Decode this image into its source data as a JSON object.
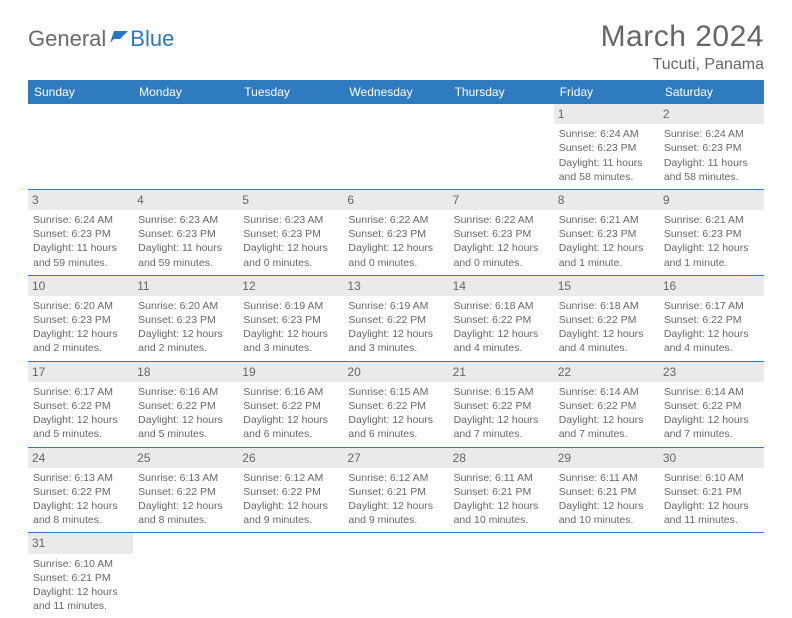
{
  "logo": {
    "text1": "General",
    "text2": "Blue"
  },
  "title": "March 2024",
  "location": "Tucuti, Panama",
  "day_headers": [
    "Sunday",
    "Monday",
    "Tuesday",
    "Wednesday",
    "Thursday",
    "Friday",
    "Saturday"
  ],
  "colors": {
    "header_bg": "#2f7bbf",
    "header_text": "#ffffff",
    "daynum_bg": "#eaeaea",
    "text": "#666666",
    "row_divider": "#2f7bbf",
    "logo_blue": "#2978c0"
  },
  "weeks": [
    [
      {
        "day": "",
        "sunrise": "",
        "sunset": "",
        "daylight": ""
      },
      {
        "day": "",
        "sunrise": "",
        "sunset": "",
        "daylight": ""
      },
      {
        "day": "",
        "sunrise": "",
        "sunset": "",
        "daylight": ""
      },
      {
        "day": "",
        "sunrise": "",
        "sunset": "",
        "daylight": ""
      },
      {
        "day": "",
        "sunrise": "",
        "sunset": "",
        "daylight": ""
      },
      {
        "day": "1",
        "sunrise": "Sunrise: 6:24 AM",
        "sunset": "Sunset: 6:23 PM",
        "daylight": "Daylight: 11 hours and 58 minutes."
      },
      {
        "day": "2",
        "sunrise": "Sunrise: 6:24 AM",
        "sunset": "Sunset: 6:23 PM",
        "daylight": "Daylight: 11 hours and 58 minutes."
      }
    ],
    [
      {
        "day": "3",
        "sunrise": "Sunrise: 6:24 AM",
        "sunset": "Sunset: 6:23 PM",
        "daylight": "Daylight: 11 hours and 59 minutes."
      },
      {
        "day": "4",
        "sunrise": "Sunrise: 6:23 AM",
        "sunset": "Sunset: 6:23 PM",
        "daylight": "Daylight: 11 hours and 59 minutes."
      },
      {
        "day": "5",
        "sunrise": "Sunrise: 6:23 AM",
        "sunset": "Sunset: 6:23 PM",
        "daylight": "Daylight: 12 hours and 0 minutes."
      },
      {
        "day": "6",
        "sunrise": "Sunrise: 6:22 AM",
        "sunset": "Sunset: 6:23 PM",
        "daylight": "Daylight: 12 hours and 0 minutes."
      },
      {
        "day": "7",
        "sunrise": "Sunrise: 6:22 AM",
        "sunset": "Sunset: 6:23 PM",
        "daylight": "Daylight: 12 hours and 0 minutes."
      },
      {
        "day": "8",
        "sunrise": "Sunrise: 6:21 AM",
        "sunset": "Sunset: 6:23 PM",
        "daylight": "Daylight: 12 hours and 1 minute."
      },
      {
        "day": "9",
        "sunrise": "Sunrise: 6:21 AM",
        "sunset": "Sunset: 6:23 PM",
        "daylight": "Daylight: 12 hours and 1 minute."
      }
    ],
    [
      {
        "day": "10",
        "sunrise": "Sunrise: 6:20 AM",
        "sunset": "Sunset: 6:23 PM",
        "daylight": "Daylight: 12 hours and 2 minutes."
      },
      {
        "day": "11",
        "sunrise": "Sunrise: 6:20 AM",
        "sunset": "Sunset: 6:23 PM",
        "daylight": "Daylight: 12 hours and 2 minutes."
      },
      {
        "day": "12",
        "sunrise": "Sunrise: 6:19 AM",
        "sunset": "Sunset: 6:23 PM",
        "daylight": "Daylight: 12 hours and 3 minutes."
      },
      {
        "day": "13",
        "sunrise": "Sunrise: 6:19 AM",
        "sunset": "Sunset: 6:22 PM",
        "daylight": "Daylight: 12 hours and 3 minutes."
      },
      {
        "day": "14",
        "sunrise": "Sunrise: 6:18 AM",
        "sunset": "Sunset: 6:22 PM",
        "daylight": "Daylight: 12 hours and 4 minutes."
      },
      {
        "day": "15",
        "sunrise": "Sunrise: 6:18 AM",
        "sunset": "Sunset: 6:22 PM",
        "daylight": "Daylight: 12 hours and 4 minutes."
      },
      {
        "day": "16",
        "sunrise": "Sunrise: 6:17 AM",
        "sunset": "Sunset: 6:22 PM",
        "daylight": "Daylight: 12 hours and 4 minutes."
      }
    ],
    [
      {
        "day": "17",
        "sunrise": "Sunrise: 6:17 AM",
        "sunset": "Sunset: 6:22 PM",
        "daylight": "Daylight: 12 hours and 5 minutes."
      },
      {
        "day": "18",
        "sunrise": "Sunrise: 6:16 AM",
        "sunset": "Sunset: 6:22 PM",
        "daylight": "Daylight: 12 hours and 5 minutes."
      },
      {
        "day": "19",
        "sunrise": "Sunrise: 6:16 AM",
        "sunset": "Sunset: 6:22 PM",
        "daylight": "Daylight: 12 hours and 6 minutes."
      },
      {
        "day": "20",
        "sunrise": "Sunrise: 6:15 AM",
        "sunset": "Sunset: 6:22 PM",
        "daylight": "Daylight: 12 hours and 6 minutes."
      },
      {
        "day": "21",
        "sunrise": "Sunrise: 6:15 AM",
        "sunset": "Sunset: 6:22 PM",
        "daylight": "Daylight: 12 hours and 7 minutes."
      },
      {
        "day": "22",
        "sunrise": "Sunrise: 6:14 AM",
        "sunset": "Sunset: 6:22 PM",
        "daylight": "Daylight: 12 hours and 7 minutes."
      },
      {
        "day": "23",
        "sunrise": "Sunrise: 6:14 AM",
        "sunset": "Sunset: 6:22 PM",
        "daylight": "Daylight: 12 hours and 7 minutes."
      }
    ],
    [
      {
        "day": "24",
        "sunrise": "Sunrise: 6:13 AM",
        "sunset": "Sunset: 6:22 PM",
        "daylight": "Daylight: 12 hours and 8 minutes."
      },
      {
        "day": "25",
        "sunrise": "Sunrise: 6:13 AM",
        "sunset": "Sunset: 6:22 PM",
        "daylight": "Daylight: 12 hours and 8 minutes."
      },
      {
        "day": "26",
        "sunrise": "Sunrise: 6:12 AM",
        "sunset": "Sunset: 6:22 PM",
        "daylight": "Daylight: 12 hours and 9 minutes."
      },
      {
        "day": "27",
        "sunrise": "Sunrise: 6:12 AM",
        "sunset": "Sunset: 6:21 PM",
        "daylight": "Daylight: 12 hours and 9 minutes."
      },
      {
        "day": "28",
        "sunrise": "Sunrise: 6:11 AM",
        "sunset": "Sunset: 6:21 PM",
        "daylight": "Daylight: 12 hours and 10 minutes."
      },
      {
        "day": "29",
        "sunrise": "Sunrise: 6:11 AM",
        "sunset": "Sunset: 6:21 PM",
        "daylight": "Daylight: 12 hours and 10 minutes."
      },
      {
        "day": "30",
        "sunrise": "Sunrise: 6:10 AM",
        "sunset": "Sunset: 6:21 PM",
        "daylight": "Daylight: 12 hours and 11 minutes."
      }
    ],
    [
      {
        "day": "31",
        "sunrise": "Sunrise: 6:10 AM",
        "sunset": "Sunset: 6:21 PM",
        "daylight": "Daylight: 12 hours and 11 minutes."
      },
      {
        "day": "",
        "sunrise": "",
        "sunset": "",
        "daylight": ""
      },
      {
        "day": "",
        "sunrise": "",
        "sunset": "",
        "daylight": ""
      },
      {
        "day": "",
        "sunrise": "",
        "sunset": "",
        "daylight": ""
      },
      {
        "day": "",
        "sunrise": "",
        "sunset": "",
        "daylight": ""
      },
      {
        "day": "",
        "sunrise": "",
        "sunset": "",
        "daylight": ""
      },
      {
        "day": "",
        "sunrise": "",
        "sunset": "",
        "daylight": ""
      }
    ]
  ]
}
